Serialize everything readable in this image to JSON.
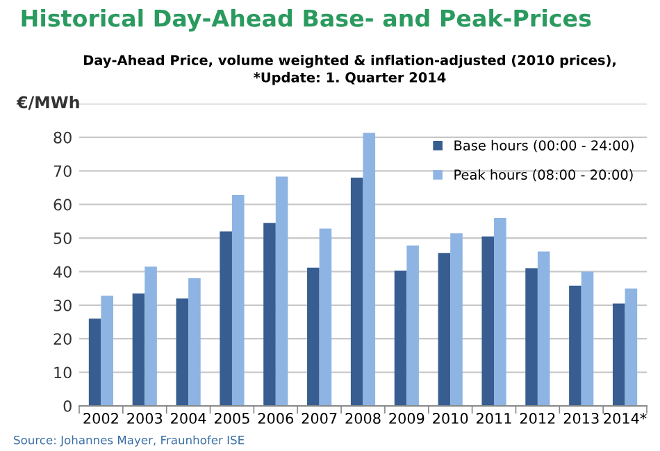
{
  "chart_data": {
    "type": "bar",
    "title": "Historical Day-Ahead Base- and Peak-Prices",
    "subtitle": "Day-Ahead Price, volume weighted & inflation-adjusted (2010 prices),\n*Update: 1. Quarter 2014",
    "ylabel": "€/MWh",
    "categories": [
      "2002",
      "2003",
      "2004",
      "2005",
      "2006",
      "2007",
      "2008",
      "2009",
      "2010",
      "2011",
      "2012",
      "2013",
      "2014*"
    ],
    "series": [
      {
        "name": "Base hours (00:00 - 24:00)",
        "color": "#375d91",
        "values": [
          26,
          33.5,
          32,
          52,
          54.5,
          41.2,
          68,
          40.3,
          45.5,
          50.5,
          41,
          35.8,
          30.5
        ]
      },
      {
        "name": "Peak hours (08:00 - 20:00)",
        "color": "#8eb4e3",
        "values": [
          32.8,
          41.5,
          38,
          62.8,
          68.3,
          52.8,
          81.3,
          47.8,
          51.4,
          56,
          46,
          40,
          35
        ]
      }
    ],
    "ylim": [
      0,
      90
    ],
    "yticks": [
      0,
      10,
      20,
      30,
      40,
      50,
      60,
      70,
      80,
      {
        "value": 90,
        "label": null
      }
    ],
    "grid": "y",
    "legend": "top right",
    "annotations": [
      "Source: Johannes Mayer, Fraunhofer ISE"
    ]
  }
}
